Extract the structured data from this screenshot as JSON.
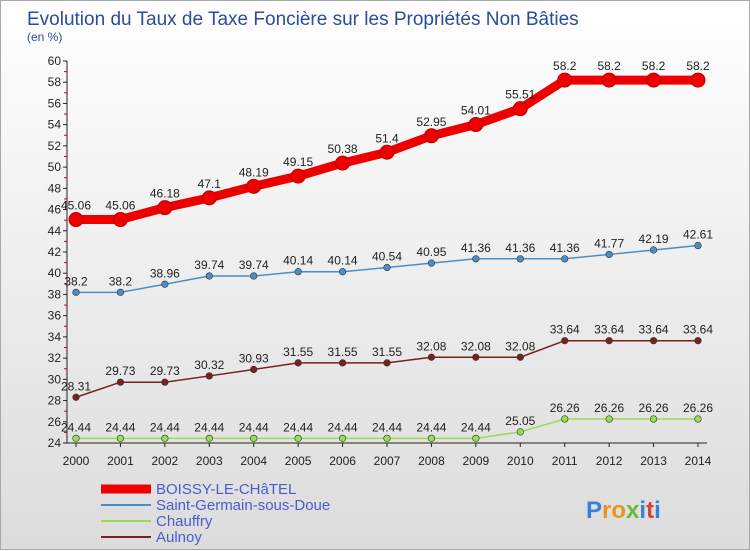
{
  "chart_data": {
    "type": "line",
    "title": "Evolution du Taux de Taxe Foncière sur les Propriétés Non Bâties",
    "unit_label": "(en %)",
    "x": [
      "2000",
      "2001",
      "2002",
      "2003",
      "2004",
      "2005",
      "2006",
      "2007",
      "2008",
      "2009",
      "2010",
      "2011",
      "2012",
      "2013",
      "2014"
    ],
    "ylim": [
      24,
      60
    ],
    "yticks": [
      24,
      26,
      28,
      30,
      32,
      34,
      36,
      38,
      40,
      42,
      44,
      46,
      48,
      50,
      52,
      54,
      56,
      58,
      60
    ],
    "series": [
      {
        "name": "BOISSY-LE-CHâTEL",
        "color": "#ee0000",
        "values": [
          45.06,
          45.06,
          46.18,
          47.1,
          48.19,
          49.15,
          50.38,
          51.4,
          52.95,
          54.01,
          55.51,
          58.2,
          58.2,
          58.2,
          58.2
        ],
        "labels": [
          "45.06",
          "45.06",
          "46.18",
          "47.1",
          "48.19",
          "49.15",
          "50.38",
          "51.4",
          "52.95",
          "54.01",
          "55.51",
          "58.2",
          "58.2",
          "58.2",
          "58.2"
        ]
      },
      {
        "name": "Saint-Germain-sous-Doue",
        "color": "#4a8ec8",
        "values": [
          38.2,
          38.2,
          38.96,
          39.74,
          39.74,
          40.14,
          40.14,
          40.54,
          40.95,
          41.36,
          41.36,
          41.36,
          41.77,
          42.19,
          42.61
        ],
        "labels": [
          "38.2",
          "38.2",
          "38.96",
          "39.74",
          "39.74",
          "40.14",
          "40.14",
          "40.54",
          "40.95",
          "41.36",
          "41.36",
          "41.36",
          "41.77",
          "42.19",
          "42.61"
        ]
      },
      {
        "name": "Chauffry",
        "color": "#99dd55",
        "values": [
          24.44,
          24.44,
          24.44,
          24.44,
          24.44,
          24.44,
          24.44,
          24.44,
          24.44,
          24.44,
          25.05,
          26.26,
          26.26,
          26.26,
          26.26
        ],
        "labels": [
          "24.44",
          "24.44",
          "24.44",
          "24.44",
          "24.44",
          "24.44",
          "24.44",
          "24.44",
          "24.44",
          "24.44",
          "25.05",
          "26.26",
          "26.26",
          "26.26",
          "26.26"
        ]
      },
      {
        "name": "Aulnoy",
        "color": "#7a2020",
        "values": [
          28.31,
          29.73,
          29.73,
          30.32,
          30.93,
          31.55,
          31.55,
          31.55,
          32.08,
          32.08,
          32.08,
          33.64,
          33.64,
          33.64,
          33.64
        ],
        "labels": [
          "28.31",
          "29.73",
          "29.73",
          "30.32",
          "30.93",
          "31.55",
          "31.55",
          "31.55",
          "32.08",
          "32.08",
          "32.08",
          "33.64",
          "33.64",
          "33.64",
          "33.64"
        ]
      }
    ]
  },
  "logo": {
    "text": "Proxiti"
  }
}
